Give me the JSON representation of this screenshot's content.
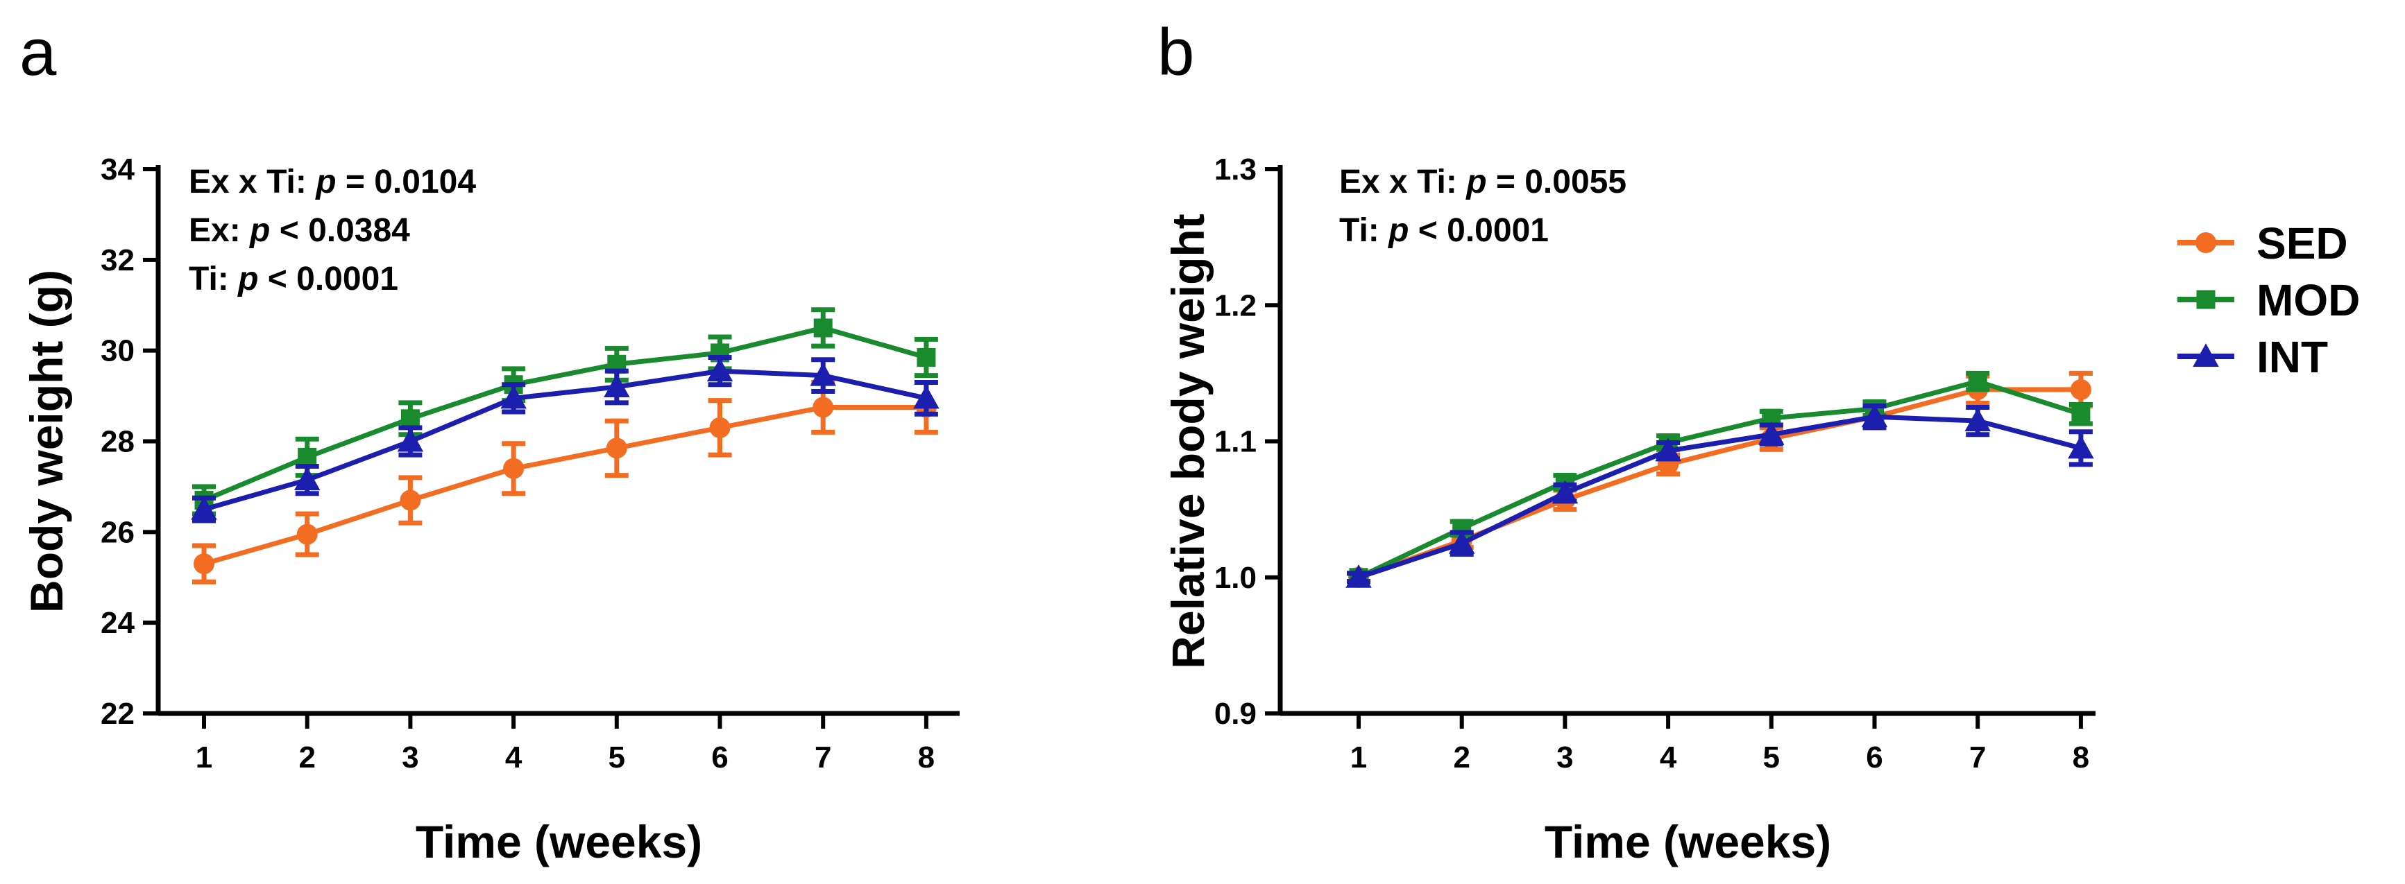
{
  "colors": {
    "SED": "#f26c21",
    "MOD": "#1a8a2e",
    "INT": "#1c1fae"
  },
  "legend": [
    {
      "name": "SED",
      "marker": "circle"
    },
    {
      "name": "MOD",
      "marker": "square"
    },
    {
      "name": "INT",
      "marker": "triangle"
    }
  ],
  "chart_data": [
    {
      "type": "line",
      "panel": "a",
      "xlabel": "Time (weeks)",
      "ylabel": "Body weight (g)",
      "x": [
        1,
        2,
        3,
        4,
        5,
        6,
        7,
        8
      ],
      "xticks": [
        "1",
        "2",
        "3",
        "4",
        "5",
        "6",
        "7",
        "8"
      ],
      "ylim": [
        22,
        34
      ],
      "yticks": [
        "22",
        "24",
        "26",
        "28",
        "30",
        "32",
        "34"
      ],
      "annotations": [
        {
          "prefix": "Ex x Ti: ",
          "p": "p",
          "rest": " = 0.0104"
        },
        {
          "prefix": "Ex: ",
          "p": "p",
          "rest": " < 0.0384"
        },
        {
          "prefix": "Ti: ",
          "p": "p",
          "rest": " < 0.0001"
        }
      ],
      "series": [
        {
          "name": "SED",
          "values": [
            25.3,
            25.95,
            26.7,
            27.4,
            27.85,
            28.3,
            28.75,
            28.75
          ],
          "err": [
            0.4,
            0.45,
            0.5,
            0.55,
            0.6,
            0.6,
            0.55,
            0.55
          ]
        },
        {
          "name": "MOD",
          "values": [
            26.7,
            27.65,
            28.5,
            29.25,
            29.7,
            29.95,
            30.5,
            29.85
          ],
          "err": [
            0.3,
            0.4,
            0.35,
            0.35,
            0.35,
            0.35,
            0.4,
            0.4
          ]
        },
        {
          "name": "INT",
          "values": [
            26.5,
            27.15,
            28.0,
            28.95,
            29.2,
            29.55,
            29.45,
            28.95
          ],
          "err": [
            0.25,
            0.3,
            0.3,
            0.3,
            0.35,
            0.3,
            0.35,
            0.35
          ]
        }
      ]
    },
    {
      "type": "line",
      "panel": "b",
      "xlabel": "Time (weeks)",
      "ylabel": "Relative body weight",
      "x": [
        1,
        2,
        3,
        4,
        5,
        6,
        7,
        8
      ],
      "xticks": [
        "1",
        "2",
        "3",
        "4",
        "5",
        "6",
        "7",
        "8"
      ],
      "ylim": [
        0.9,
        1.3
      ],
      "yticks": [
        "0.9",
        "1.0",
        "1.1",
        "1.2",
        "1.3"
      ],
      "annotations": [
        {
          "prefix": "Ex x Ti: ",
          "p": "p",
          "rest": " = 0.0055"
        },
        {
          "prefix": "Ti: ",
          "p": "p",
          "rest": " < 0.0001"
        }
      ],
      "series": [
        {
          "name": "SED",
          "values": [
            1.0,
            1.027,
            1.057,
            1.083,
            1.102,
            1.118,
            1.138,
            1.138
          ],
          "err": [
            0.003,
            0.005,
            0.007,
            0.007,
            0.008,
            0.008,
            0.01,
            0.012
          ]
        },
        {
          "name": "MOD",
          "values": [
            1.0,
            1.036,
            1.07,
            1.099,
            1.117,
            1.124,
            1.144,
            1.12
          ],
          "err": [
            0.003,
            0.005,
            0.005,
            0.005,
            0.005,
            0.005,
            0.006,
            0.007
          ]
        },
        {
          "name": "INT",
          "values": [
            1.0,
            1.025,
            1.062,
            1.093,
            1.105,
            1.118,
            1.115,
            1.095
          ],
          "err": [
            0.003,
            0.008,
            0.006,
            0.006,
            0.007,
            0.008,
            0.01,
            0.012
          ]
        }
      ]
    }
  ]
}
